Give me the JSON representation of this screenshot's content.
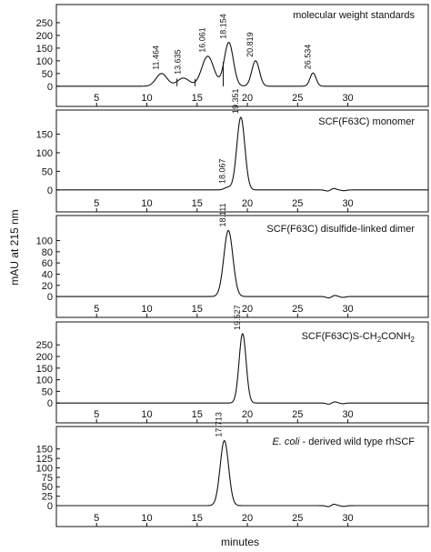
{
  "figure": {
    "ylabel": "mAU at 215 nm",
    "xlabel": "minutes"
  },
  "chart_data": [
    {
      "type": "line",
      "title": "molecular weight standards",
      "title_style": "plain",
      "xlim": [
        1,
        38
      ],
      "ylim": [
        -15,
        300
      ],
      "x_ticks": [
        5,
        10,
        15,
        20,
        25,
        30
      ],
      "y_ticks": [
        0,
        50,
        100,
        150,
        200,
        250
      ],
      "peaks": [
        {
          "rt": 11.464,
          "height": 50,
          "width": 0.55,
          "label": "11.464"
        },
        {
          "rt": 13.635,
          "height": 32,
          "width": 0.6,
          "label": "13.635"
        },
        {
          "rt": 16.061,
          "height": 118,
          "width": 0.6,
          "label": "16.061"
        },
        {
          "rt": 18.154,
          "height": 172,
          "width": 0.45,
          "label": "18.154"
        },
        {
          "rt": 20.819,
          "height": 100,
          "width": 0.38,
          "label": "20.819"
        },
        {
          "rt": 26.534,
          "height": 52,
          "width": 0.3,
          "label": "26.534"
        }
      ],
      "dips": [],
      "baseline_marks": [
        13.0,
        14.8,
        17.6
      ]
    },
    {
      "type": "line",
      "title": "SCF(F63C) monomer",
      "title_style": "plain",
      "xlim": [
        1,
        38
      ],
      "ylim": [
        -15,
        200
      ],
      "x_ticks": [
        5,
        10,
        15,
        20,
        25,
        30
      ],
      "y_ticks": [
        0,
        50,
        100,
        150
      ],
      "peaks": [
        {
          "rt": 18.067,
          "height": 7,
          "width": 0.35,
          "label": "18.067"
        },
        {
          "rt": 19.351,
          "height": 195,
          "width": 0.4,
          "label": "19.351"
        }
      ],
      "dips": [
        {
          "rt": 28.0,
          "depth": 3,
          "width": 0.25
        },
        {
          "rt": 28.6,
          "depth": -4,
          "width": 0.25
        },
        {
          "rt": 29.6,
          "depth": 2,
          "width": 0.25
        }
      ],
      "baseline_marks": []
    },
    {
      "type": "line",
      "title": "SCF(F63C) disulfide-linked dimer",
      "title_style": "plain",
      "xlim": [
        1,
        38
      ],
      "ylim": [
        -8,
        135
      ],
      "x_ticks": [
        5,
        10,
        15,
        20,
        25,
        30
      ],
      "y_ticks": [
        0,
        20,
        40,
        60,
        80,
        100
      ],
      "peaks": [
        {
          "rt": 18.111,
          "height": 118,
          "width": 0.45,
          "label": "18.111"
        }
      ],
      "dips": [
        {
          "rt": 28.1,
          "depth": 2.5,
          "width": 0.25
        },
        {
          "rt": 28.7,
          "depth": -2,
          "width": 0.25
        },
        {
          "rt": 29.5,
          "depth": 1.5,
          "width": 0.25
        }
      ],
      "baseline_marks": []
    },
    {
      "type": "line",
      "title": "SCF(F63C)S-CH2CONH2",
      "title_main": "SCF(F63C)S-CH",
      "title_sub1": "2",
      "title_mid": "CONH",
      "title_sub2": "2",
      "title_style": "subscript",
      "xlim": [
        1,
        38
      ],
      "ylim": [
        -15,
        325
      ],
      "x_ticks": [
        5,
        10,
        15,
        20,
        25,
        30
      ],
      "y_ticks": [
        0,
        50,
        100,
        150,
        200,
        250
      ],
      "peaks": [
        {
          "rt": 19.527,
          "height": 298,
          "width": 0.35,
          "label": "19.527"
        }
      ],
      "dips": [
        {
          "rt": 28.1,
          "depth": 5,
          "width": 0.25
        },
        {
          "rt": 28.7,
          "depth": -5,
          "width": 0.25
        },
        {
          "rt": 29.5,
          "depth": 3,
          "width": 0.25
        }
      ],
      "baseline_marks": []
    },
    {
      "type": "line",
      "title": "E. coli - derived wild type rhSCF",
      "title_italic": "E. coli",
      "title_rest": " - derived wild type rhSCF",
      "title_style": "italic-prefix",
      "xlim": [
        1,
        38
      ],
      "ylim": [
        -12,
        195
      ],
      "x_ticks": [
        5,
        10,
        15,
        20,
        25,
        30
      ],
      "y_ticks": [
        0,
        25,
        50,
        75,
        100,
        125,
        150
      ],
      "peaks": [
        {
          "rt": 17.713,
          "height": 172,
          "width": 0.42,
          "label": "17.713"
        }
      ],
      "dips": [
        {
          "rt": 28.1,
          "depth": 3,
          "width": 0.25
        },
        {
          "rt": 28.6,
          "depth": -4,
          "width": 0.25
        },
        {
          "rt": 29.6,
          "depth": 2,
          "width": 0.25
        }
      ],
      "baseline_marks": []
    }
  ]
}
